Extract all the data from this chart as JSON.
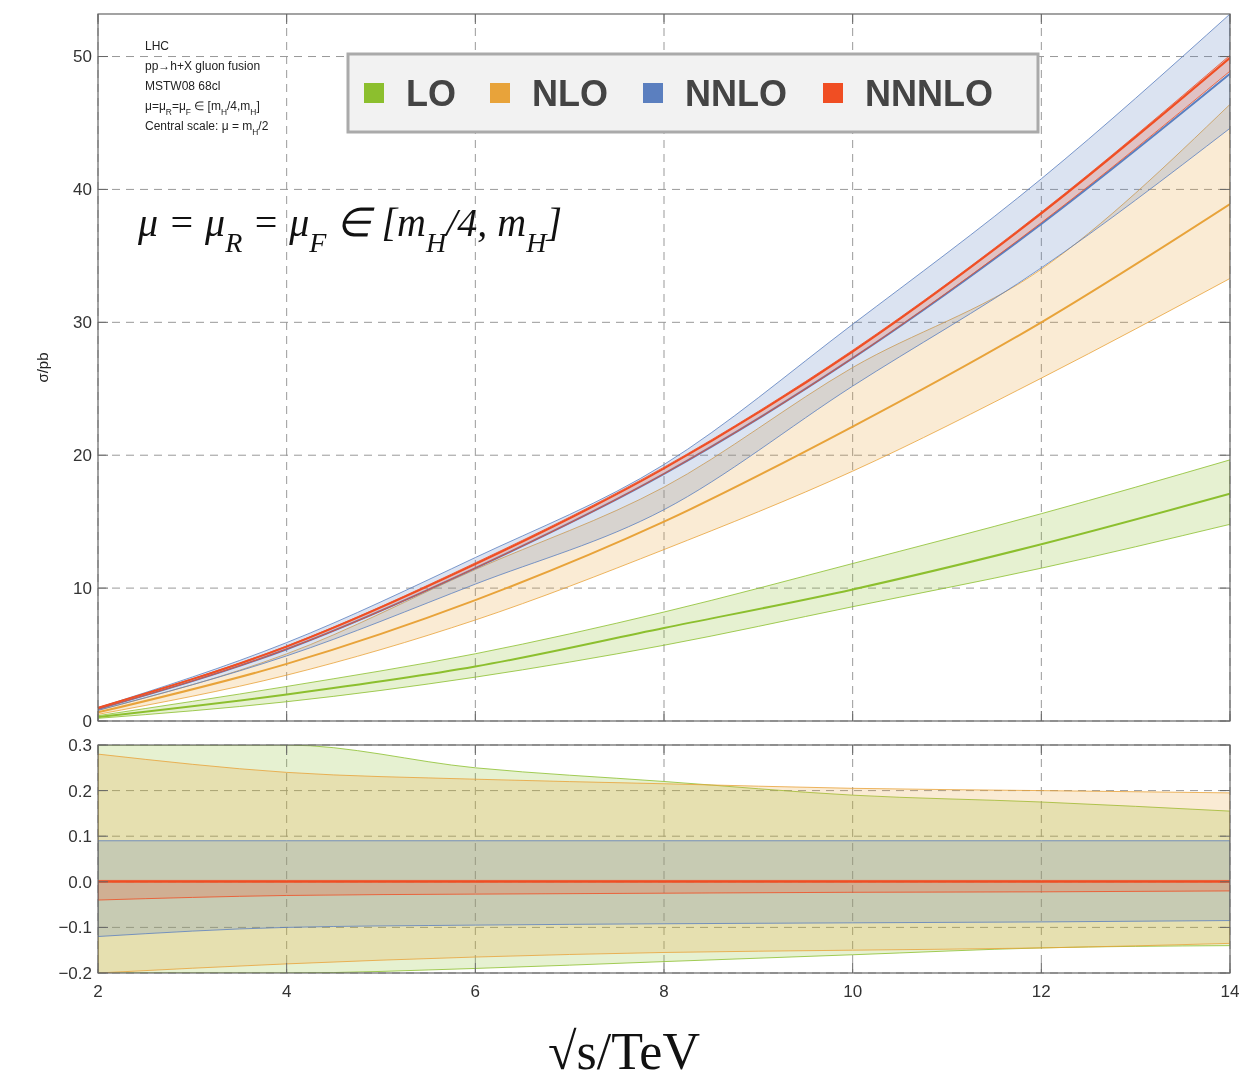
{
  "chart_data": [
    {
      "type": "line",
      "ylabel": "σ/pb",
      "x": [
        2,
        4,
        6,
        8,
        10,
        12,
        14
      ],
      "xlim": [
        2,
        14
      ],
      "xticks": [
        2,
        4,
        6,
        8,
        10,
        12,
        14
      ],
      "ylim": [
        0,
        53.2
      ],
      "yticks": [
        0,
        10,
        20,
        30,
        40,
        50
      ],
      "tick_labels": "y",
      "grid": true,
      "legend": "top",
      "annotations": [
        "LHC",
        "pp→h+X gluon fusion",
        "MSTW08 68cl",
        "μ=μ$_{R}$=μ$_{F}$ ∈ [m$_{H}$/4,m$_{H}$]",
        "Central scale: μ = m$_{H}$/2",
        "μ = μ$_{R}$ = μ$_{F}$ ∈ [m$_{H}$/4, m$_{H}$]"
      ],
      "series": [
        {
          "name": "LO",
          "color": "#8cbf2e",
          "values": [
            0.3,
            2.0,
            4.1,
            7.0,
            9.9,
            13.3,
            17.1
          ],
          "lower": [
            0.2,
            1.45,
            3.3,
            5.7,
            8.6,
            11.5,
            14.8
          ],
          "upper": [
            0.4,
            2.6,
            5.06,
            8.2,
            11.85,
            15.6,
            19.65
          ]
        },
        {
          "name": "NLO",
          "color": "#e8a33a",
          "values": [
            0.65,
            4.3,
            9.1,
            15.0,
            22.15,
            30.0,
            38.9
          ],
          "lower": [
            0.5,
            3.45,
            7.6,
            12.9,
            18.8,
            25.8,
            33.3
          ],
          "upper": [
            0.8,
            5.05,
            11.4,
            17.6,
            26.6,
            34.0,
            46.4
          ]
        },
        {
          "name": "NNLO",
          "color": "#5b7fbf",
          "values": [
            0.9,
            5.4,
            11.5,
            18.6,
            27.3,
            37.4,
            48.7
          ],
          "lower": [
            0.8,
            4.9,
            10.3,
            15.9,
            25.2,
            34.1,
            44.6
          ],
          "upper": [
            1.0,
            5.9,
            12.3,
            19.3,
            29.85,
            40.8,
            53.2
          ]
        },
        {
          "name": "NNNLO",
          "color": "#f04e23",
          "values": [
            1.0,
            5.6,
            11.8,
            19.0,
            27.8,
            38.2,
            49.9
          ],
          "lower": [
            0.9,
            5.4,
            11.5,
            18.6,
            27.3,
            37.5,
            48.9
          ],
          "upper": [
            1.0,
            5.65,
            11.9,
            19.1,
            27.9,
            38.3,
            50.1
          ]
        }
      ]
    },
    {
      "type": "line",
      "xlabel": "√s/TeV",
      "x": [
        2,
        4,
        6,
        8,
        10,
        12,
        14
      ],
      "xlim": [
        2,
        14
      ],
      "xticks": [
        2,
        4,
        6,
        8,
        10,
        12,
        14
      ],
      "ylim": [
        -0.2,
        0.3
      ],
      "yticks": [
        {
          "value": -0.2,
          "label": "−0.2"
        },
        {
          "value": -0.1,
          "label": "−0.1"
        },
        {
          "value": 0,
          "label": "0.0"
        },
        0.1,
        0.2,
        0.3
      ],
      "grid": true,
      "series": [
        {
          "color": "#8cbf2e",
          "values": [
            null,
            null,
            null,
            null,
            null,
            null,
            null
          ],
          "lower": [
            -0.2,
            -0.2,
            -0.19,
            -0.175,
            -0.16,
            -0.145,
            -0.14
          ],
          "upper": [
            0.3,
            0.3,
            0.25,
            0.22,
            0.19,
            0.175,
            0.155
          ]
        },
        {
          "color": "#e8a33a",
          "values": [
            null,
            null,
            null,
            null,
            null,
            null,
            null
          ],
          "lower": [
            -0.2,
            -0.18,
            -0.165,
            -0.155,
            -0.15,
            -0.145,
            -0.135
          ],
          "upper": [
            0.28,
            0.24,
            0.225,
            0.215,
            0.205,
            0.2,
            0.195
          ]
        },
        {
          "color": "#5b7fbf",
          "values": [
            null,
            null,
            null,
            null,
            null,
            null,
            null
          ],
          "lower": [
            -0.12,
            -0.1,
            -0.095,
            -0.092,
            -0.09,
            -0.088,
            -0.085
          ],
          "upper": [
            0.09,
            0.09,
            0.09,
            0.09,
            0.09,
            0.09,
            0.09
          ]
        },
        {
          "color": "#f04e23",
          "values": [
            0,
            0,
            0,
            0,
            0,
            0,
            0
          ],
          "lower": [
            -0.04,
            -0.03,
            -0.027,
            -0.025,
            -0.023,
            -0.022,
            -0.02
          ],
          "upper": [
            0.003,
            0.003,
            0.003,
            0.003,
            0.003,
            0.003,
            0.003
          ]
        }
      ]
    }
  ]
}
